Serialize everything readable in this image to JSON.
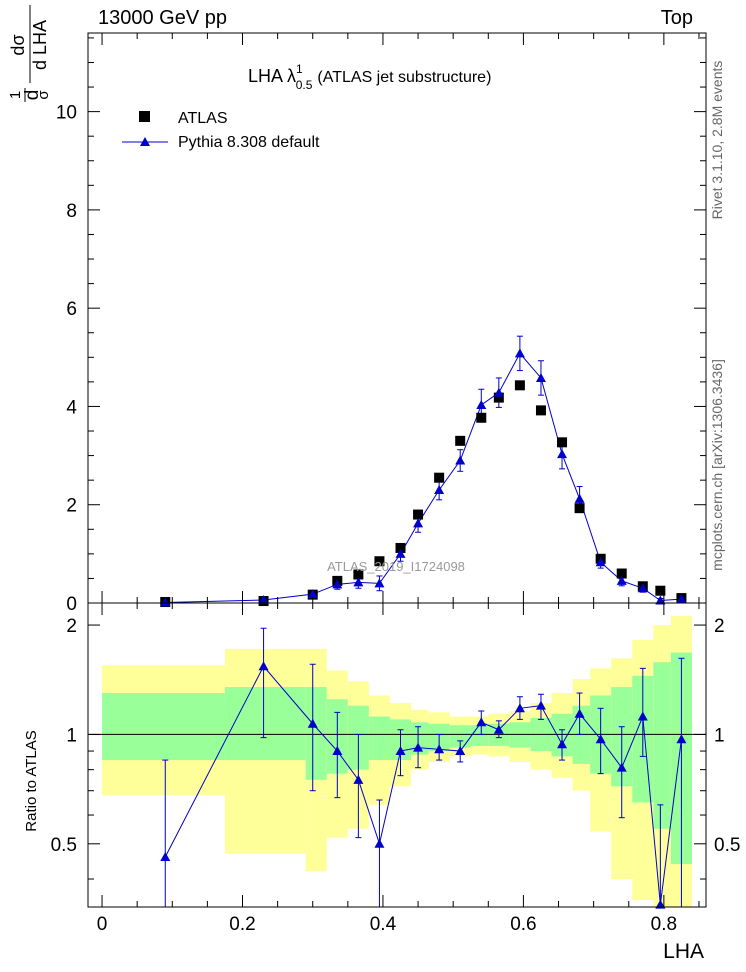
{
  "header": {
    "left": "13000 GeV pp",
    "right": "Top"
  },
  "side_labels": {
    "rivet": "Rivet 3.1.10,  2.8M events",
    "mcplots": "mcplots.cern.ch [arXiv:1306.3436]"
  },
  "watermark": "ATLAS_2019_I1724098",
  "colors": {
    "data": "#000000",
    "mc": "#0000cc",
    "band_inner": "#99ff99",
    "band_outer": "#ffff99"
  },
  "chart_data": [
    {
      "type": "scatter",
      "title": "LHA λ",
      "title_sup": "1",
      "title_sub": "0.5",
      "title_suffix": "(ATLAS jet substructure)",
      "ylabel": "1/σ dσ/d LHA",
      "xlim": [
        -0.02,
        0.86
      ],
      "ylim": [
        0,
        11.6
      ],
      "yticks": [
        0,
        2,
        4,
        6,
        8,
        10
      ],
      "legend_position": "top-left",
      "series": [
        {
          "name": "ATLAS",
          "marker": "square",
          "x": [
            0.09,
            0.23,
            0.3,
            0.335,
            0.365,
            0.395,
            0.425,
            0.45,
            0.48,
            0.51,
            0.54,
            0.565,
            0.595,
            0.625,
            0.655,
            0.68,
            0.71,
            0.74,
            0.77,
            0.795,
            0.825
          ],
          "y": [
            0.02,
            0.04,
            0.17,
            0.45,
            0.58,
            0.85,
            1.12,
            1.8,
            2.55,
            3.3,
            3.77,
            4.18,
            4.43,
            3.92,
            3.27,
            1.93,
            0.9,
            0.6,
            0.34,
            0.25,
            0.1
          ]
        },
        {
          "name": "Pythia 8.308 default",
          "marker": "triangle",
          "x": [
            0.09,
            0.23,
            0.3,
            0.335,
            0.365,
            0.395,
            0.425,
            0.45,
            0.48,
            0.51,
            0.54,
            0.565,
            0.595,
            0.625,
            0.655,
            0.68,
            0.71,
            0.74,
            0.77,
            0.795,
            0.825
          ],
          "y": [
            0.01,
            0.06,
            0.18,
            0.38,
            0.42,
            0.4,
            1.0,
            1.62,
            2.3,
            2.9,
            4.03,
            4.28,
            5.08,
            4.58,
            3.03,
            2.12,
            0.83,
            0.45,
            0.3,
            0.05,
            0.08
          ],
          "err": [
            0.01,
            0.03,
            0.05,
            0.1,
            0.12,
            0.15,
            0.15,
            0.18,
            0.2,
            0.22,
            0.32,
            0.3,
            0.35,
            0.35,
            0.3,
            0.25,
            0.12,
            0.1,
            0.08,
            0.04,
            0.05
          ]
        }
      ]
    },
    {
      "type": "line",
      "ylabel": "Ratio to ATLAS",
      "xlabel": "LHA",
      "xlim": [
        -0.02,
        0.86
      ],
      "ylim": [
        0.335,
        2.3
      ],
      "xticks": [
        0,
        0.2,
        0.4,
        0.6,
        0.8
      ],
      "yticks": [
        0.5,
        1,
        2
      ],
      "bins": [
        {
          "lo": 0.0,
          "hi": 0.175,
          "inner": [
            0.85,
            1.3
          ],
          "outer": [
            0.68,
            1.55
          ]
        },
        {
          "lo": 0.175,
          "hi": 0.29,
          "inner": [
            0.85,
            1.35
          ],
          "outer": [
            0.47,
            1.72
          ]
        },
        {
          "lo": 0.29,
          "hi": 0.32,
          "inner": [
            0.75,
            1.35
          ],
          "outer": [
            0.42,
            1.72
          ]
        },
        {
          "lo": 0.32,
          "hi": 0.35,
          "inner": [
            0.78,
            1.25
          ],
          "outer": [
            0.52,
            1.5
          ]
        },
        {
          "lo": 0.35,
          "hi": 0.38,
          "inner": [
            0.8,
            1.2
          ],
          "outer": [
            0.55,
            1.4
          ]
        },
        {
          "lo": 0.38,
          "hi": 0.41,
          "inner": [
            0.85,
            1.12
          ],
          "outer": [
            0.64,
            1.28
          ]
        },
        {
          "lo": 0.41,
          "hi": 0.44,
          "inner": [
            0.85,
            1.1
          ],
          "outer": [
            0.72,
            1.22
          ]
        },
        {
          "lo": 0.44,
          "hi": 0.465,
          "inner": [
            0.88,
            1.08
          ],
          "outer": [
            0.8,
            1.17
          ]
        },
        {
          "lo": 0.465,
          "hi": 0.495,
          "inner": [
            0.9,
            1.07
          ],
          "outer": [
            0.84,
            1.15
          ]
        },
        {
          "lo": 0.495,
          "hi": 0.525,
          "inner": [
            0.92,
            1.06
          ],
          "outer": [
            0.87,
            1.12
          ]
        },
        {
          "lo": 0.525,
          "hi": 0.55,
          "inner": [
            0.93,
            1.06
          ],
          "outer": [
            0.88,
            1.12
          ]
        },
        {
          "lo": 0.55,
          "hi": 0.58,
          "inner": [
            0.93,
            1.07
          ],
          "outer": [
            0.87,
            1.14
          ]
        },
        {
          "lo": 0.58,
          "hi": 0.61,
          "inner": [
            0.92,
            1.08
          ],
          "outer": [
            0.84,
            1.16
          ]
        },
        {
          "lo": 0.61,
          "hi": 0.64,
          "inner": [
            0.9,
            1.11
          ],
          "outer": [
            0.8,
            1.22
          ]
        },
        {
          "lo": 0.64,
          "hi": 0.67,
          "inner": [
            0.87,
            1.14
          ],
          "outer": [
            0.76,
            1.3
          ]
        },
        {
          "lo": 0.67,
          "hi": 0.695,
          "inner": [
            0.83,
            1.2
          ],
          "outer": [
            0.7,
            1.42
          ]
        },
        {
          "lo": 0.695,
          "hi": 0.725,
          "inner": [
            0.78,
            1.28
          ],
          "outer": [
            0.54,
            1.52
          ]
        },
        {
          "lo": 0.725,
          "hi": 0.755,
          "inner": [
            0.72,
            1.35
          ],
          "outer": [
            0.4,
            1.62
          ]
        },
        {
          "lo": 0.755,
          "hi": 0.785,
          "inner": [
            0.65,
            1.45
          ],
          "outer": [
            0.35,
            1.82
          ]
        },
        {
          "lo": 0.785,
          "hi": 0.81,
          "inner": [
            0.55,
            1.58
          ],
          "outer": [
            0.33,
            2.0
          ]
        },
        {
          "lo": 0.81,
          "hi": 0.84,
          "inner": [
            0.44,
            1.68
          ],
          "outer": [
            0.33,
            2.12
          ]
        }
      ],
      "series": [
        {
          "name": "Pythia 8.308 default",
          "x": [
            0.09,
            0.23,
            0.3,
            0.335,
            0.365,
            0.395,
            0.425,
            0.45,
            0.48,
            0.51,
            0.54,
            0.565,
            0.595,
            0.625,
            0.655,
            0.68,
            0.71,
            0.74,
            0.77,
            0.795,
            0.825
          ],
          "y": [
            0.46,
            1.54,
            1.07,
            0.9,
            0.75,
            0.5,
            0.9,
            0.92,
            0.91,
            0.9,
            1.08,
            1.03,
            1.18,
            1.2,
            0.94,
            1.14,
            0.97,
            0.81,
            1.12,
            0.34,
            0.97
          ],
          "ylo": [
            0.33,
            0.98,
            0.7,
            0.67,
            0.52,
            0.33,
            0.77,
            0.81,
            0.85,
            0.84,
            1.0,
            0.98,
            1.1,
            1.1,
            0.85,
            1.0,
            0.78,
            0.59,
            0.87,
            0.33,
            0.33
          ],
          "yhi": [
            0.85,
            1.96,
            1.56,
            1.15,
            1.0,
            0.66,
            1.03,
            1.05,
            1.0,
            0.96,
            1.16,
            1.09,
            1.27,
            1.29,
            1.03,
            1.3,
            1.18,
            1.05,
            1.52,
            0.64,
            1.62
          ]
        }
      ]
    }
  ]
}
